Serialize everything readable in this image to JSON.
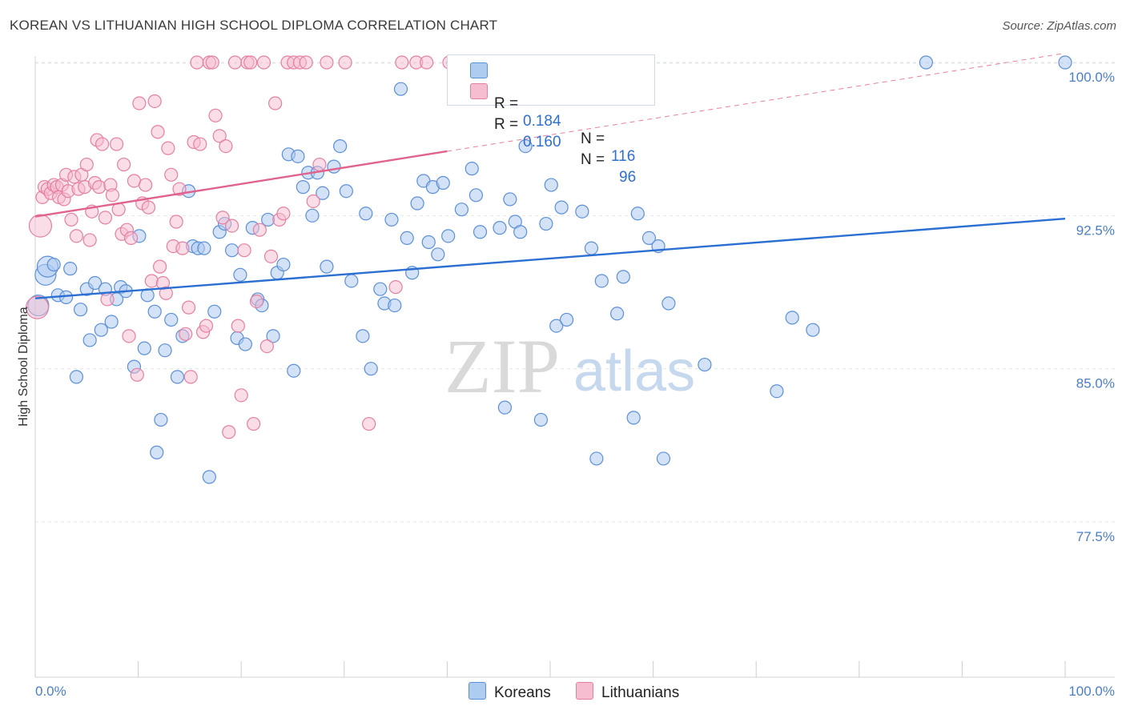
{
  "title": "KOREAN VS LITHUANIAN HIGH SCHOOL DIPLOMA CORRELATION CHART",
  "source": "Source: ZipAtlas.com",
  "watermark": {
    "zip": "ZIP",
    "atlas": "atlas"
  },
  "colors": {
    "korean_fill": "#aecbf0",
    "korean_stroke": "#5b8fd8",
    "korean_line": "#2a6fd1",
    "lithuanian_fill": "#f6bcd0",
    "lithuanian_stroke": "#e57fa2",
    "lithuanian_line": "#e0628e",
    "accent_text": "#2f6fd0"
  },
  "legend": {
    "korean": {
      "r_label": "R = ",
      "r_value": "0.184",
      "n_label": "N = ",
      "n_value": "116"
    },
    "lithuanian": {
      "r_label": "R = ",
      "r_value": "0.160",
      "n_label": "N = ",
      "n_value": "96"
    }
  },
  "bottom_legend": {
    "korean": "Koreans",
    "lithuanian": "Lithuanians"
  },
  "chart_data": {
    "type": "scatter",
    "title": "KOREAN VS LITHUANIAN HIGH SCHOOL DIPLOMA CORRELATION CHART",
    "ylabel": "High School Diploma",
    "xlabel": "",
    "xlim": [
      0,
      100
    ],
    "ylim": [
      71.5,
      101.2
    ],
    "x_tick_labels": [
      "0.0%",
      "100.0%"
    ],
    "y_ticks": [
      77.5,
      85.0,
      92.5,
      100.0
    ],
    "y_tick_labels": [
      "77.5%",
      "85.0%",
      "92.5%",
      "100.0%"
    ],
    "grid": true,
    "series": [
      {
        "name": "Koreans",
        "trend": {
          "x": [
            0,
            100
          ],
          "y": [
            88.45,
            92.35
          ]
        },
        "points": [
          [
            0.3,
            88.1
          ],
          [
            1.0,
            89.6
          ],
          [
            1.2,
            90.0
          ],
          [
            1.8,
            90.1
          ],
          [
            2.2,
            88.6
          ],
          [
            3.0,
            88.5
          ],
          [
            3.4,
            89.9
          ],
          [
            4.0,
            84.6
          ],
          [
            4.4,
            87.9
          ],
          [
            5.0,
            88.9
          ],
          [
            5.3,
            86.4
          ],
          [
            5.8,
            89.2
          ],
          [
            6.4,
            86.9
          ],
          [
            6.8,
            88.9
          ],
          [
            7.4,
            87.3
          ],
          [
            7.9,
            88.4
          ],
          [
            8.3,
            89.0
          ],
          [
            8.8,
            88.8
          ],
          [
            9.6,
            85.1
          ],
          [
            10.1,
            91.5
          ],
          [
            10.6,
            86.0
          ],
          [
            10.9,
            88.6
          ],
          [
            11.6,
            87.8
          ],
          [
            12.2,
            82.5
          ],
          [
            11.8,
            80.9
          ],
          [
            12.6,
            85.9
          ],
          [
            13.2,
            87.4
          ],
          [
            13.8,
            84.6
          ],
          [
            14.3,
            86.6
          ],
          [
            14.9,
            93.7
          ],
          [
            15.3,
            91.0
          ],
          [
            15.8,
            90.9
          ],
          [
            16.4,
            90.9
          ],
          [
            16.9,
            79.7
          ],
          [
            17.4,
            87.8
          ],
          [
            17.9,
            91.7
          ],
          [
            18.4,
            92.1
          ],
          [
            19.1,
            90.8
          ],
          [
            19.6,
            86.5
          ],
          [
            19.9,
            89.6
          ],
          [
            20.4,
            86.2
          ],
          [
            21.1,
            91.9
          ],
          [
            21.6,
            88.4
          ],
          [
            22.0,
            88.1
          ],
          [
            22.6,
            92.3
          ],
          [
            23.1,
            86.6
          ],
          [
            23.5,
            89.7
          ],
          [
            24.1,
            90.1
          ],
          [
            24.6,
            95.5
          ],
          [
            25.1,
            84.9
          ],
          [
            25.5,
            95.4
          ],
          [
            26.0,
            93.9
          ],
          [
            26.5,
            94.6
          ],
          [
            26.9,
            92.5
          ],
          [
            27.4,
            94.6
          ],
          [
            27.9,
            93.6
          ],
          [
            28.3,
            90.0
          ],
          [
            29.0,
            94.9
          ],
          [
            29.6,
            95.9
          ],
          [
            30.2,
            93.7
          ],
          [
            30.7,
            89.3
          ],
          [
            31.8,
            86.6
          ],
          [
            32.1,
            92.6
          ],
          [
            32.6,
            85.0
          ],
          [
            33.5,
            88.9
          ],
          [
            33.9,
            88.2
          ],
          [
            34.6,
            92.3
          ],
          [
            34.9,
            88.1
          ],
          [
            35.5,
            98.7
          ],
          [
            36.1,
            91.4
          ],
          [
            36.6,
            89.7
          ],
          [
            37.1,
            93.1
          ],
          [
            37.7,
            94.2
          ],
          [
            38.2,
            91.2
          ],
          [
            38.6,
            93.9
          ],
          [
            39.1,
            90.6
          ],
          [
            39.6,
            94.1
          ],
          [
            40.1,
            91.5
          ],
          [
            40.6,
            100.0
          ],
          [
            41.4,
            92.8
          ],
          [
            42.4,
            94.8
          ],
          [
            42.8,
            93.5
          ],
          [
            43.2,
            91.7
          ],
          [
            45.1,
            91.9
          ],
          [
            45.6,
            83.1
          ],
          [
            46.1,
            93.3
          ],
          [
            46.6,
            92.2
          ],
          [
            47.1,
            91.7
          ],
          [
            47.6,
            95.9
          ],
          [
            49.1,
            82.5
          ],
          [
            49.6,
            92.1
          ],
          [
            50.1,
            94.0
          ],
          [
            50.6,
            87.1
          ],
          [
            51.1,
            92.9
          ],
          [
            51.6,
            87.4
          ],
          [
            53.1,
            92.7
          ],
          [
            54.0,
            90.9
          ],
          [
            54.5,
            80.6
          ],
          [
            55.0,
            89.3
          ],
          [
            56.5,
            87.7
          ],
          [
            57.1,
            89.5
          ],
          [
            58.5,
            92.6
          ],
          [
            58.1,
            82.6
          ],
          [
            59.6,
            91.4
          ],
          [
            60.5,
            91.0
          ],
          [
            61.0,
            80.6
          ],
          [
            61.5,
            88.2
          ],
          [
            65.0,
            85.2
          ],
          [
            72.0,
            83.9
          ],
          [
            73.5,
            87.5
          ],
          [
            75.5,
            86.9
          ],
          [
            86.5,
            100.0
          ],
          [
            100.0,
            100.0
          ]
        ]
      },
      {
        "name": "Lithuanians",
        "trend": {
          "x": [
            0,
            40
          ],
          "y": [
            92.45,
            95.65
          ]
        },
        "trend_extension": {
          "x": [
            40,
            100
          ],
          "y": [
            95.65,
            100.45
          ]
        },
        "points": [
          [
            0.2,
            88.0
          ],
          [
            0.5,
            92.0
          ],
          [
            0.7,
            93.4
          ],
          [
            0.9,
            93.9
          ],
          [
            1.2,
            93.8
          ],
          [
            1.5,
            93.6
          ],
          [
            1.8,
            94.0
          ],
          [
            2.1,
            93.9
          ],
          [
            2.3,
            93.4
          ],
          [
            2.6,
            94.0
          ],
          [
            2.8,
            93.3
          ],
          [
            3.0,
            94.5
          ],
          [
            3.2,
            93.7
          ],
          [
            3.5,
            92.3
          ],
          [
            3.8,
            94.4
          ],
          [
            4.0,
            91.5
          ],
          [
            4.2,
            93.8
          ],
          [
            4.5,
            94.5
          ],
          [
            4.8,
            93.9
          ],
          [
            5.0,
            95.0
          ],
          [
            5.3,
            91.3
          ],
          [
            5.5,
            92.7
          ],
          [
            5.8,
            94.1
          ],
          [
            6.0,
            96.2
          ],
          [
            6.2,
            93.9
          ],
          [
            6.5,
            96.0
          ],
          [
            6.8,
            92.4
          ],
          [
            7.0,
            88.4
          ],
          [
            7.3,
            94.0
          ],
          [
            7.5,
            93.5
          ],
          [
            7.9,
            96.0
          ],
          [
            8.1,
            92.8
          ],
          [
            8.4,
            91.6
          ],
          [
            8.6,
            95.0
          ],
          [
            8.9,
            91.8
          ],
          [
            9.1,
            86.6
          ],
          [
            9.3,
            91.4
          ],
          [
            9.6,
            94.2
          ],
          [
            9.9,
            84.7
          ],
          [
            10.1,
            98.0
          ],
          [
            10.4,
            93.1
          ],
          [
            10.7,
            94.0
          ],
          [
            11.0,
            92.9
          ],
          [
            11.3,
            89.3
          ],
          [
            11.6,
            98.1
          ],
          [
            11.9,
            96.6
          ],
          [
            12.1,
            90.0
          ],
          [
            12.4,
            89.2
          ],
          [
            12.7,
            88.7
          ],
          [
            12.9,
            95.8
          ],
          [
            13.2,
            94.5
          ],
          [
            13.4,
            91.0
          ],
          [
            13.7,
            92.2
          ],
          [
            14.0,
            93.8
          ],
          [
            14.3,
            90.9
          ],
          [
            14.6,
            86.7
          ],
          [
            14.9,
            88.0
          ],
          [
            15.1,
            84.6
          ],
          [
            15.4,
            96.1
          ],
          [
            15.7,
            100.0
          ],
          [
            16.0,
            96.0
          ],
          [
            16.3,
            86.8
          ],
          [
            16.6,
            87.1
          ],
          [
            16.9,
            100.0
          ],
          [
            17.2,
            100.0
          ],
          [
            17.5,
            97.4
          ],
          [
            17.9,
            96.4
          ],
          [
            18.2,
            92.4
          ],
          [
            18.5,
            95.9
          ],
          [
            18.8,
            81.9
          ],
          [
            19.1,
            92.0
          ],
          [
            19.4,
            100.0
          ],
          [
            19.7,
            87.1
          ],
          [
            20.0,
            83.7
          ],
          [
            20.3,
            90.8
          ],
          [
            20.6,
            100.0
          ],
          [
            20.9,
            100.0
          ],
          [
            21.2,
            82.3
          ],
          [
            21.5,
            88.3
          ],
          [
            21.8,
            91.8
          ],
          [
            22.2,
            100.0
          ],
          [
            22.5,
            86.1
          ],
          [
            22.9,
            90.5
          ],
          [
            23.3,
            98.0
          ],
          [
            23.7,
            92.3
          ],
          [
            24.1,
            92.6
          ],
          [
            24.5,
            100.0
          ],
          [
            25.1,
            100.0
          ],
          [
            25.7,
            100.0
          ],
          [
            26.3,
            100.0
          ],
          [
            27.0,
            93.2
          ],
          [
            27.6,
            95.0
          ],
          [
            28.3,
            100.0
          ],
          [
            30.1,
            100.0
          ],
          [
            32.4,
            82.3
          ],
          [
            35.0,
            89.0
          ],
          [
            35.6,
            100.0
          ],
          [
            37.0,
            100.0
          ],
          [
            38.0,
            100.0
          ],
          [
            40.2,
            100.0
          ]
        ]
      }
    ]
  }
}
